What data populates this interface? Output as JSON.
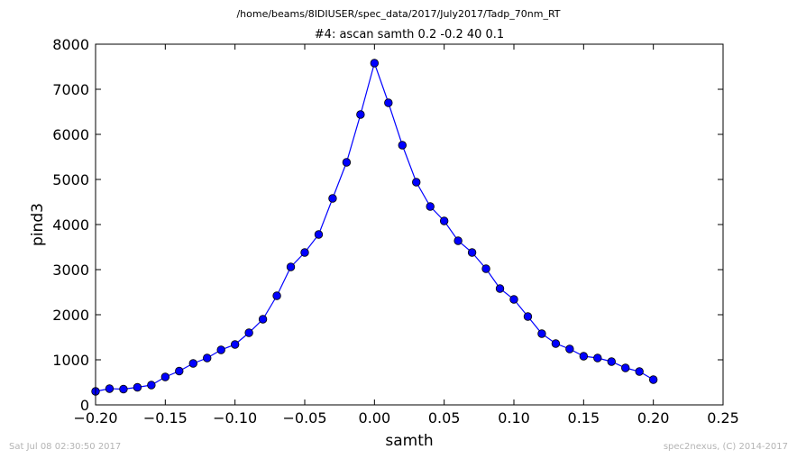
{
  "chart_data": {
    "type": "line",
    "supertitle": "/home/beams/8IDIUSER/spec_data/2017/July2017/Tadp_70nm_RT",
    "title": "#4: ascan  samth 0.2 -0.2  40 0.1",
    "xlabel": "samth",
    "ylabel": "pind3",
    "xlim": [
      -0.2,
      0.25
    ],
    "ylim": [
      0,
      8000
    ],
    "x_ticks": [
      -0.2,
      -0.15,
      -0.1,
      -0.05,
      0.0,
      0.05,
      0.1,
      0.15,
      0.2,
      0.25
    ],
    "x_tick_labels": [
      "−0.20",
      "−0.15",
      "−0.10",
      "−0.05",
      "0.00",
      "0.05",
      "0.10",
      "0.15",
      "0.20",
      "0.25"
    ],
    "y_ticks": [
      0,
      1000,
      2000,
      3000,
      4000,
      5000,
      6000,
      7000,
      8000
    ],
    "y_tick_labels": [
      "0",
      "1000",
      "2000",
      "3000",
      "4000",
      "5000",
      "6000",
      "7000",
      "8000"
    ],
    "grid": false,
    "series": [
      {
        "color": "#0000ff",
        "marker": "circle",
        "x": [
          -0.2,
          -0.19,
          -0.18,
          -0.17,
          -0.16,
          -0.15,
          -0.14,
          -0.13,
          -0.12,
          -0.11,
          -0.1,
          -0.09,
          -0.08,
          -0.07,
          -0.06,
          -0.05,
          -0.04,
          -0.03,
          -0.02,
          -0.01,
          0.0,
          0.01,
          0.02,
          0.03,
          0.04,
          0.05,
          0.06,
          0.07,
          0.08,
          0.09,
          0.1,
          0.11,
          0.12,
          0.13,
          0.14,
          0.15,
          0.16,
          0.17,
          0.18,
          0.19,
          0.2
        ],
        "y": [
          300,
          360,
          350,
          390,
          440,
          620,
          750,
          920,
          1040,
          1220,
          1340,
          1600,
          1900,
          2420,
          3060,
          3380,
          3780,
          4580,
          5380,
          6440,
          7580,
          6700,
          5760,
          4940,
          4400,
          4080,
          3640,
          3380,
          3020,
          2580,
          2340,
          1960,
          1580,
          1360,
          1240,
          1080,
          1040,
          960,
          820,
          740,
          560
        ]
      }
    ]
  },
  "footer": {
    "timestamp": "Sat Jul 08 02:30:50 2017",
    "credit": "spec2nexus, (C) 2014-2017"
  }
}
